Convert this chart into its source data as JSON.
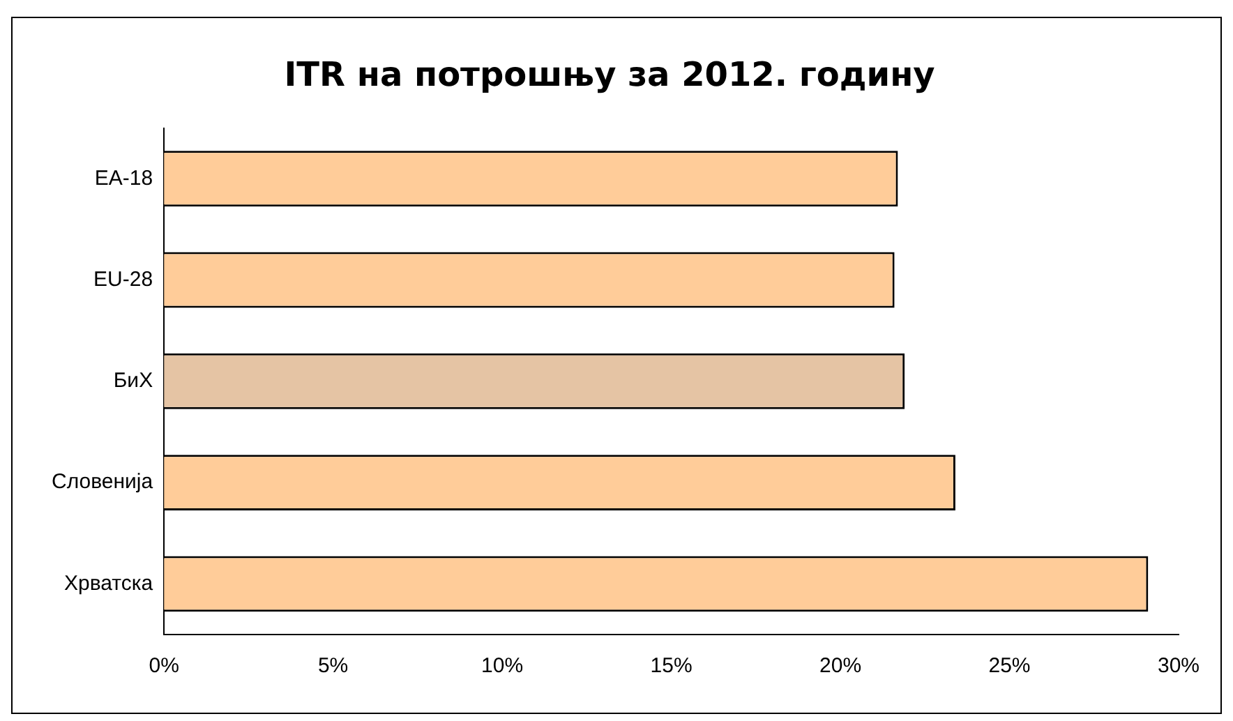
{
  "chart_data": {
    "type": "bar",
    "orientation": "horizontal",
    "title": "ITR на потрошњу за 2012. годину",
    "categories": [
      "EA-18",
      "EU-28",
      "БиХ",
      "Словенија",
      "Хрватска"
    ],
    "values": [
      21.7,
      21.6,
      21.9,
      23.4,
      29.1
    ],
    "colors": [
      "#ffcc99",
      "#ffcc99",
      "#e5c4a4",
      "#ffcc99",
      "#ffcc99"
    ],
    "xlim": [
      0,
      30
    ],
    "xticks": [
      {
        "value": 0,
        "label": "0%"
      },
      {
        "value": 5,
        "label": "5%"
      },
      {
        "value": 10,
        "label": "10%"
      },
      {
        "value": 15,
        "label": "15%"
      },
      {
        "value": 20,
        "label": "20%"
      },
      {
        "value": 25,
        "label": "25%"
      },
      {
        "value": 30,
        "label": "30%"
      }
    ],
    "grid": false,
    "legend": false
  }
}
